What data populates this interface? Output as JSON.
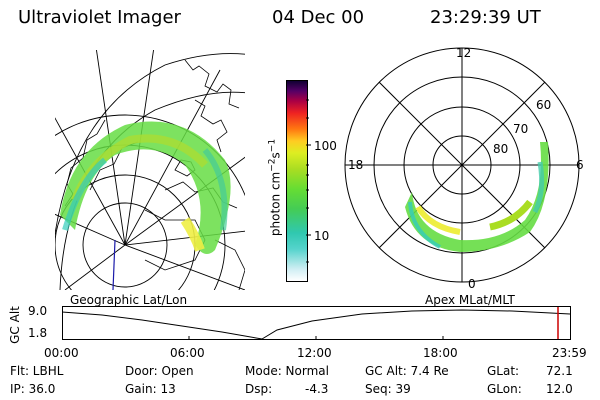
{
  "header": {
    "instrument": "Ultraviolet Imager",
    "date": "04 Dec 00",
    "time": "23:29:39 UT"
  },
  "colorbar": {
    "unit_label": "photon cm",
    "unit_exp1": "−2",
    "unit_s": "s",
    "unit_exp2": "−1",
    "tick_high": "100",
    "tick_low": "10"
  },
  "left_map": {
    "caption": "Geographic Lat/Lon"
  },
  "polar_plot": {
    "caption": "Apex MLat/MLT",
    "mlt_labels": {
      "top": "12",
      "left": "18",
      "right": "6",
      "bottom": "0"
    },
    "lat_labels": [
      "60",
      "70",
      "80"
    ]
  },
  "alt_strip": {
    "ylabel": "GC Alt",
    "y_ticks": [
      "9.0",
      "1.8"
    ],
    "x_ticks": [
      "00:00",
      "06:00",
      "12:00",
      "18:00",
      "23:59"
    ]
  },
  "info": {
    "filter": "Flt: LBHL",
    "ip": "IP: 36.0",
    "door": "Door: Open",
    "gain": "Gain: 13",
    "mode": "Mode: Normal",
    "dsp_label": "Dsp:",
    "dsp_value": "-4.3",
    "gc_alt": "GC Alt: 7.4 Re",
    "seq": "Seq: 39",
    "glat_label": "GLat:",
    "glat_value": "72.1",
    "glon_label": "GLon:",
    "glon_value": "12.0"
  },
  "colors": {
    "background": "#ffffff",
    "foreground": "#000000",
    "marker": "#cc0000",
    "track": "#1a1aaa"
  }
}
